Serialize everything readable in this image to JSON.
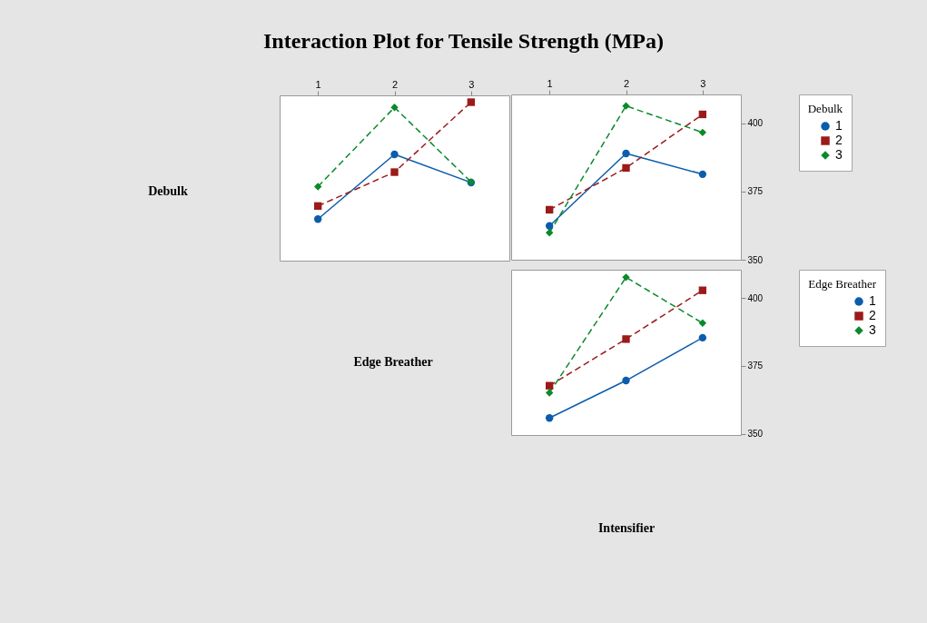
{
  "chart_data": [
    {
      "type": "line",
      "title": "Interaction Plot for Tensile Strength (MPa)",
      "ylabel": "Debulk",
      "xlabel": "Edge Breather",
      "categories": [
        "1",
        "2",
        "3"
      ],
      "ylim": [
        350,
        410.5
      ],
      "yticks": [
        350,
        375,
        400
      ],
      "tick_labels": "x",
      "legend": false,
      "grid": false,
      "series": [
        {
          "color": "#0b5cad",
          "marker": "circle",
          "line_style": "solid",
          "values": [
            365.2,
            388.9,
            378.6
          ]
        },
        {
          "color": "#9c1a1a",
          "marker": "square",
          "line_style": "dashed",
          "values": [
            370,
            382.4,
            408
          ]
        },
        {
          "color": "#0a8a2a",
          "marker": "diamond",
          "line_style": "dashed",
          "values": [
            377.1,
            406.1,
            378.8
          ]
        }
      ]
    },
    {
      "type": "line",
      "legend_title": "Debulk",
      "categories": [
        "1",
        "2",
        "3"
      ],
      "ylim": [
        350,
        410.5
      ],
      "yticks": [
        350,
        375,
        400
      ],
      "legend": "right",
      "grid": false,
      "series": [
        {
          "name": "1",
          "color": "#0b5cad",
          "marker": "circle",
          "line_style": "solid",
          "values": [
            362.4,
            388.9,
            381.3
          ]
        },
        {
          "name": "2",
          "color": "#9c1a1a",
          "marker": "square",
          "line_style": "dashed",
          "values": [
            368.3,
            383.6,
            403.2
          ]
        },
        {
          "name": "3",
          "color": "#0a8a2a",
          "marker": "diamond",
          "line_style": "dashed",
          "values": [
            359.9,
            406.3,
            396.6
          ]
        }
      ]
    },
    {
      "type": "line",
      "xlabel": "Intensifier",
      "legend_title": "Edge Breather",
      "categories": [
        null,
        null,
        null
      ],
      "ylim": [
        349.5,
        410.5
      ],
      "yticks": [
        350,
        375,
        400
      ],
      "tick_labels": "y",
      "legend": "right",
      "grid": false,
      "series": [
        {
          "name": "1",
          "color": "#0b5cad",
          "marker": "circle",
          "line_style": "solid",
          "values": [
            355.8,
            369.6,
            385.4
          ]
        },
        {
          "name": "2",
          "color": "#9c1a1a",
          "marker": "square",
          "line_style": "dashed",
          "values": [
            367.7,
            384.9,
            402.9
          ]
        },
        {
          "name": "3",
          "color": "#0a8a2a",
          "marker": "diamond",
          "line_style": "dashed",
          "values": [
            365.1,
            407.7,
            390.8
          ]
        }
      ]
    }
  ]
}
